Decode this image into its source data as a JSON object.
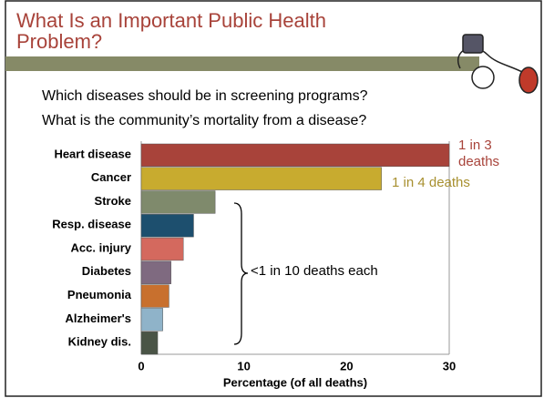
{
  "title_lines": [
    "What Is an Important Public Health",
    "Problem?"
  ],
  "questions": [
    "Which diseases should be in screening programs?",
    "What is the community’s mortality from a disease?"
  ],
  "chart_data": {
    "type": "bar",
    "orientation": "horizontal",
    "categories": [
      "Heart disease",
      "Cancer",
      "Stroke",
      "Resp. disease",
      "Acc. injury",
      "Diabetes",
      "Pneumonia",
      "Alzheimer's",
      "Kidney dis."
    ],
    "values": [
      30,
      23.4,
      7.2,
      5.1,
      4.1,
      2.9,
      2.7,
      2.1,
      1.6
    ],
    "colors": [
      "#a8433a",
      "#c8ab2f",
      "#7f8a6c",
      "#1d4f6e",
      "#d4695e",
      "#7f6a80",
      "#c8702e",
      "#8fb3c9",
      "#4a5446"
    ],
    "xlim": [
      0,
      30
    ],
    "xticks": [
      0,
      10,
      20,
      30
    ],
    "grid": false,
    "xlabel": "Percentage (of all deaths)",
    "annotations": [
      {
        "lines": [
          "1 in 3",
          "deaths"
        ],
        "color": "#a8433a"
      },
      {
        "lines": [
          "1 in 4 deaths"
        ],
        "color": "#a89030"
      },
      {
        "lines": [
          "<1 in 10 deaths each"
        ],
        "color": "#000000"
      }
    ]
  }
}
